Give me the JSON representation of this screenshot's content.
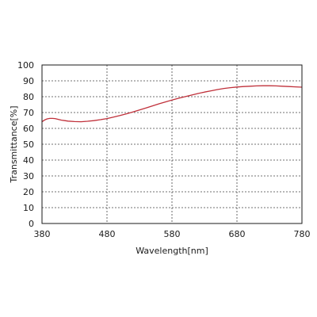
{
  "chart_data": {
    "type": "line",
    "title": "",
    "xlabel": "Wavelength[nm]",
    "ylabel": "Transmittance[%]",
    "xlim": [
      380,
      780
    ],
    "ylim": [
      0,
      100
    ],
    "x_ticks": [
      380,
      480,
      580,
      680,
      780
    ],
    "y_ticks": [
      0,
      10,
      20,
      30,
      40,
      50,
      60,
      70,
      80,
      90,
      100
    ],
    "grid": true,
    "legend": "none",
    "series": [
      {
        "color": "#c0303a",
        "x": [
          380,
          384,
          388,
          392,
          396,
          400,
          405,
          410,
          415,
          420,
          430,
          440,
          450,
          460,
          470,
          480,
          490,
          500,
          510,
          520,
          530,
          540,
          550,
          560,
          570,
          580,
          590,
          600,
          610,
          620,
          630,
          640,
          650,
          660,
          670,
          680,
          690,
          700,
          710,
          720,
          730,
          740,
          750,
          760,
          770,
          780
        ],
        "y": [
          64.2,
          65.3,
          66.0,
          66.3,
          66.3,
          66.2,
          65.7,
          65.2,
          64.9,
          64.6,
          64.3,
          64.2,
          64.5,
          64.9,
          65.5,
          66.2,
          67.1,
          68.1,
          69.2,
          70.4,
          71.6,
          72.9,
          74.2,
          75.5,
          76.7,
          77.9,
          79.0,
          80.0,
          81.0,
          82.0,
          82.9,
          83.7,
          84.5,
          85.2,
          85.7,
          86.1,
          86.4,
          86.6,
          86.8,
          86.9,
          86.9,
          86.8,
          86.6,
          86.4,
          86.2,
          86.0
        ]
      }
    ]
  }
}
